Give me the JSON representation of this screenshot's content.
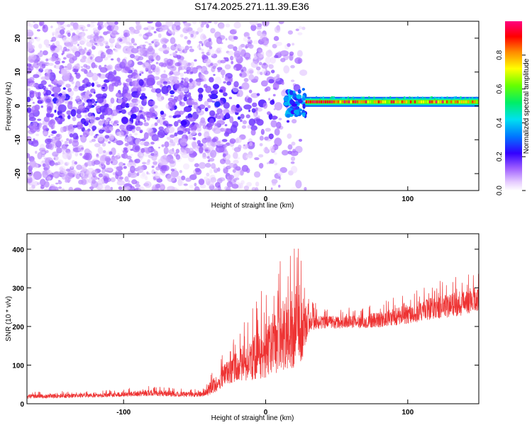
{
  "title": "S174.2025.271.11.39.E36",
  "chart_data": [
    {
      "type": "heatmap",
      "xlabel": "Height of straight line (km)",
      "ylabel": "Frequency (Hz)",
      "xlim": [
        -168,
        150
      ],
      "ylim": [
        -25,
        25
      ],
      "xticks": [
        -100,
        0,
        100
      ],
      "yticks": [
        -20,
        -10,
        0,
        10,
        20
      ],
      "xtick_labels": [
        "-100",
        "0",
        "100"
      ],
      "ytick_labels": [
        "-20",
        "-10",
        "0",
        "10",
        "20"
      ],
      "description_regions": [
        {
          "x_range": [
            -168,
            28
          ],
          "freq_range": [
            -25,
            25
          ],
          "amplitude": [
            0.0,
            0.3
          ],
          "kind": "scattered noise"
        },
        {
          "x_range": [
            28,
            150
          ],
          "freq_range": [
            0,
            2
          ],
          "amplitude": [
            0.4,
            1.0
          ],
          "kind": "narrow carrier line near ~1 Hz"
        }
      ],
      "colorbar": {
        "label": "Normalized spectral amplitude",
        "ticks": [
          0.0,
          0.2,
          0.4,
          0.6,
          0.8
        ],
        "tick_labels": [
          "0.0",
          "0.2",
          "0.4",
          "0.6",
          "0.8"
        ],
        "range": [
          0,
          1
        ]
      }
    },
    {
      "type": "line",
      "xlabel": "Height of straight line (km)",
      "ylabel": "SNR (10 * v/v)",
      "xlim": [
        -168,
        150
      ],
      "ylim": [
        0,
        440
      ],
      "xticks": [
        -100,
        0,
        100
      ],
      "yticks": [
        0,
        100,
        200,
        300,
        400
      ],
      "xtick_labels": [
        "-100",
        "0",
        "100"
      ],
      "ytick_labels": [
        "0",
        "100",
        "200",
        "300",
        "400"
      ],
      "series": [
        {
          "name": "SNR",
          "color": "#ee3333",
          "x": [
            -168,
            -140,
            -110,
            -80,
            -60,
            -45,
            -38,
            -30,
            -20,
            -10,
            0,
            10,
            20,
            25,
            30,
            40,
            60,
            80,
            100,
            120,
            140,
            150
          ],
          "y": [
            18,
            20,
            22,
            28,
            24,
            24,
            40,
            70,
            95,
            110,
            135,
            160,
            190,
            200,
            210,
            210,
            210,
            215,
            230,
            245,
            260,
            270
          ],
          "spread": [
            10,
            10,
            10,
            15,
            12,
            12,
            35,
            50,
            70,
            100,
            140,
            160,
            200,
            200,
            50,
            30,
            30,
            35,
            45,
            55,
            60,
            60
          ]
        }
      ]
    }
  ]
}
